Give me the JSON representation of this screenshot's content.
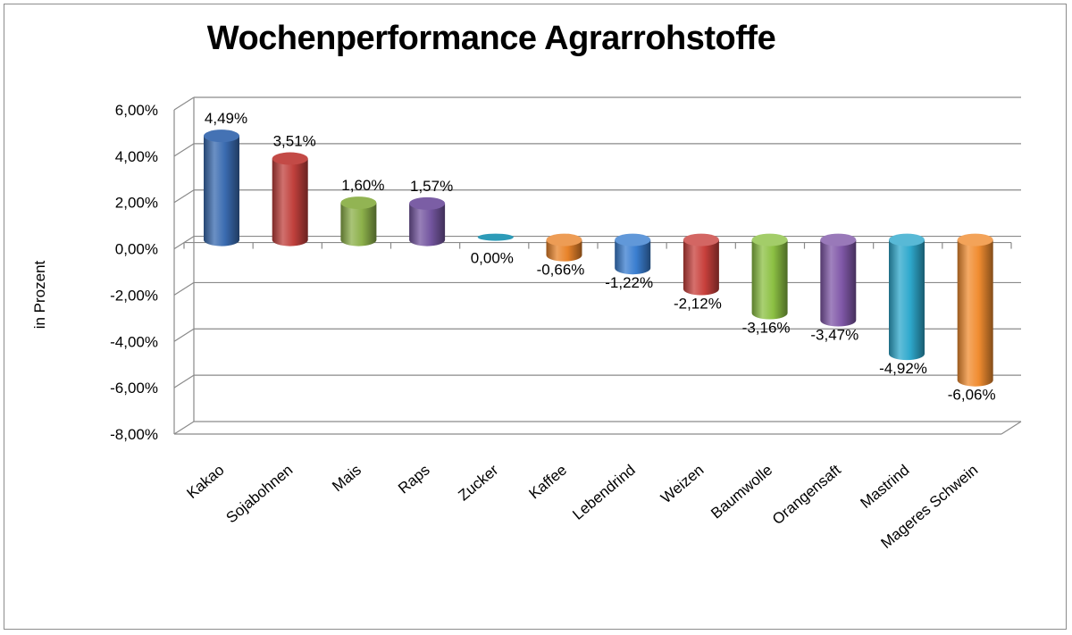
{
  "chart_data": {
    "type": "bar",
    "title": "Wochenperformance Agrarrohstoffe",
    "ylabel": "in Prozent",
    "xlabel": "",
    "ylim": [
      -8,
      6
    ],
    "yticks": [
      "6,00%",
      "4,00%",
      "2,00%",
      "0,00%",
      "-2,00%",
      "-4,00%",
      "-6,00%",
      "-8,00%"
    ],
    "ytick_values": [
      6,
      4,
      2,
      0,
      -2,
      -4,
      -6,
      -8
    ],
    "grid": true,
    "categories": [
      "Kakao",
      "Sojabohnen",
      "Mais",
      "Raps",
      "Zucker",
      "Kaffee",
      "Lebendrind",
      "Weizen",
      "Baumwolle",
      "Orangensaft",
      "Mastrind",
      "Mageres Schwein"
    ],
    "values": [
      4.49,
      3.51,
      1.6,
      1.57,
      0.0,
      -0.66,
      -1.22,
      -2.12,
      -3.16,
      -3.47,
      -4.92,
      -6.06
    ],
    "data_labels": [
      "4,49%",
      "3,51%",
      "1,60%",
      "1,57%",
      "0,00%",
      "-0,66%",
      "-1,22%",
      "-2,12%",
      "-3,16%",
      "-3,47%",
      "-4,92%",
      "-6,06%"
    ],
    "colors": [
      "#3a6bb0",
      "#c0403c",
      "#8cb04a",
      "#7456a0",
      "#2d9bb8",
      "#e8832a",
      "#3a7ed0",
      "#c8403c",
      "#8cc043",
      "#8058a8",
      "#2ea8cc",
      "#f08c30"
    ]
  }
}
